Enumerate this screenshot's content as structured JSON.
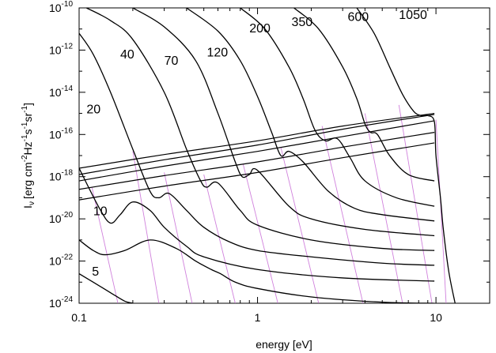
{
  "chart_data": {
    "type": "line",
    "title": "",
    "xlabel": "energy [eV]",
    "ylabel": "I",
    "ylabel_subscript": "ν",
    "ylabel_units": "[erg cm",
    "ylabel_unit_parts": [
      "[erg cm",
      "-2",
      "Hz",
      "-1",
      "s",
      "-1",
      "sr",
      "-1",
      "]"
    ],
    "x_scale": "log",
    "y_scale": "log",
    "xlim": [
      0.1,
      20
    ],
    "ylim": [
      1e-24,
      1e-10
    ],
    "grid": false,
    "legend": "none",
    "x_ticks": [
      {
        "value": 0.1,
        "label": "0.1"
      },
      {
        "value": 1,
        "label": "1"
      },
      {
        "value": 10,
        "label": "10"
      }
    ],
    "y_ticks": [
      {
        "value": -10,
        "base": "10",
        "exp": "-10"
      },
      {
        "value": -12,
        "base": "10",
        "exp": "-12"
      },
      {
        "value": -14,
        "base": "10",
        "exp": "-14"
      },
      {
        "value": -16,
        "base": "10",
        "exp": "-16"
      },
      {
        "value": -18,
        "base": "10",
        "exp": "-18"
      },
      {
        "value": -20,
        "base": "10",
        "exp": "-20"
      },
      {
        "value": -22,
        "base": "10",
        "exp": "-22"
      },
      {
        "value": -24,
        "base": "10",
        "exp": "-24"
      }
    ],
    "curve_labels": [
      {
        "text": "5",
        "x": 0.118,
        "y": 2e-23
      },
      {
        "text": "10",
        "x": 0.12,
        "y": 1.5e-20
      },
      {
        "text": "20",
        "x": 0.11,
        "y": 1e-15
      },
      {
        "text": "40",
        "x": 0.17,
        "y": 4e-13
      },
      {
        "text": "70",
        "x": 0.3,
        "y": 2e-13
      },
      {
        "text": "120",
        "x": 0.52,
        "y": 5e-13
      },
      {
        "text": "200",
        "x": 0.9,
        "y": 7e-12
      },
      {
        "text": "350",
        "x": 1.55,
        "y": 1.4e-11
      },
      {
        "text": "600",
        "x": 3.2,
        "y": 2.4e-11
      },
      {
        "text": "1050",
        "x": 6.2,
        "y": 3e-11
      }
    ],
    "series": [
      {
        "name": "5",
        "x": [
          0.1,
          0.12,
          0.15,
          0.18,
          0.2
        ],
        "y": [
          -22.6,
          -23.0,
          -23.5,
          -23.9,
          -24.0
        ]
      },
      {
        "name": "10",
        "x": [
          0.1,
          0.12,
          0.14,
          0.18,
          0.25,
          0.35,
          0.45,
          0.55,
          0.62,
          0.75,
          1.0,
          2.0,
          5.0,
          9.8
        ],
        "y": [
          -21.0,
          -21.5,
          -21.7,
          -21.5,
          -21.0,
          -21.4,
          -22.0,
          -22.4,
          -22.6,
          -23.0,
          -23.3,
          -23.7,
          -23.95,
          -24.0
        ]
      },
      {
        "name": "20",
        "x": [
          0.1,
          0.13,
          0.15,
          0.17,
          0.2,
          0.25,
          0.3,
          0.4,
          0.5,
          1.0,
          3.0,
          9.8
        ],
        "y": [
          -17.6,
          -19.5,
          -20.2,
          -19.8,
          -19.2,
          -19.6,
          -20.4,
          -21.3,
          -21.8,
          -22.4,
          -22.8,
          -22.95
        ]
      },
      {
        "name": "40",
        "x": [
          0.1,
          0.12,
          0.15,
          0.2,
          0.25,
          0.28,
          0.32,
          0.4,
          0.5,
          0.7,
          1.0,
          2.0,
          5.0,
          9.8
        ],
        "y": [
          -11.2,
          -12.2,
          -14.0,
          -16.7,
          -18.7,
          -19.0,
          -18.8,
          -19.6,
          -20.4,
          -21.1,
          -21.5,
          -21.8,
          -22.1,
          -22.2
        ]
      },
      {
        "name": "70",
        "x": [
          0.11,
          0.15,
          0.2,
          0.3,
          0.4,
          0.48,
          0.52,
          0.6,
          0.8,
          1.0,
          2.0,
          5.0,
          9.8
        ],
        "y": [
          -10.0,
          -10.6,
          -11.5,
          -14.0,
          -16.7,
          -18.2,
          -18.5,
          -18.3,
          -19.6,
          -20.3,
          -21.0,
          -21.4,
          -21.5
        ]
      },
      {
        "name": "120",
        "x": [
          0.2,
          0.3,
          0.45,
          0.6,
          0.75,
          0.82,
          0.9,
          1.0,
          1.5,
          2.0,
          4.0,
          9.8
        ],
        "y": [
          -10.0,
          -10.9,
          -12.5,
          -15.0,
          -17.3,
          -18.0,
          -17.9,
          -17.7,
          -19.4,
          -20.0,
          -20.5,
          -20.8
        ]
      },
      {
        "name": "200",
        "x": [
          0.4,
          0.6,
          0.8,
          1.0,
          1.2,
          1.35,
          1.5,
          1.8,
          2.5,
          3.5,
          5.0,
          9.8
        ],
        "y": [
          -10.0,
          -11.1,
          -12.5,
          -14.2,
          -15.9,
          -17.0,
          -16.8,
          -17.3,
          -18.7,
          -19.5,
          -19.8,
          -20.1
        ]
      },
      {
        "name": "350",
        "x": [
          0.8,
          1.1,
          1.5,
          1.8,
          2.1,
          2.4,
          2.8,
          3.3,
          4.0,
          6.0,
          9.8
        ],
        "y": [
          -10.0,
          -11.0,
          -12.8,
          -14.3,
          -15.8,
          -16.3,
          -16.2,
          -17.1,
          -18.2,
          -19.0,
          -19.4
        ]
      },
      {
        "name": "600",
        "x": [
          1.6,
          2.2,
          3.0,
          3.6,
          4.0,
          4.3,
          4.7,
          5.5,
          7.0,
          9.8
        ],
        "y": [
          -10.0,
          -11.0,
          -12.8,
          -14.3,
          -15.5,
          -15.9,
          -16.0,
          -17.0,
          -17.9,
          -18.2
        ]
      },
      {
        "name": "1050",
        "x": [
          3.6,
          4.5,
          5.5,
          6.5,
          7.5,
          8.2,
          9.0,
          9.8,
          10.0,
          10.6,
          11.0,
          11.8,
          12.8
        ],
        "y": [
          -10.0,
          -11.2,
          -12.8,
          -14.1,
          -14.9,
          -15.1,
          -15.1,
          -15.4,
          -17.0,
          -19.0,
          -20.5,
          -22.5,
          -24.0
        ]
      }
    ],
    "background_series": [
      {
        "x": [
          0.1,
          0.3,
          1.0,
          3.0,
          9.8
        ],
        "y": [
          -17.6,
          -16.95,
          -16.3,
          -15.6,
          -15.0
        ]
      },
      {
        "x": [
          0.1,
          0.3,
          1.0,
          3.0,
          9.8
        ],
        "y": [
          -17.9,
          -17.2,
          -16.5,
          -15.75,
          -15.05
        ]
      },
      {
        "x": [
          0.1,
          0.3,
          1.0,
          3.0,
          9.8
        ],
        "y": [
          -18.2,
          -17.5,
          -16.8,
          -16.1,
          -15.35
        ]
      },
      {
        "x": [
          0.1,
          0.3,
          1.0,
          3.0,
          9.8
        ],
        "y": [
          -18.6,
          -17.95,
          -17.3,
          -16.6,
          -15.9
        ]
      },
      {
        "x": [
          0.1,
          0.3,
          1.0,
          3.0,
          9.8
        ],
        "y": [
          -19.1,
          -18.45,
          -17.8,
          -17.1,
          -16.4
        ]
      }
    ],
    "guide_lines": [
      {
        "x": [
          0.118,
          0.165
        ],
        "y": [
          -18.5,
          -24.0
        ]
      },
      {
        "x": [
          0.2,
          0.28
        ],
        "y": [
          -16.8,
          -24.0
        ]
      },
      {
        "x": [
          0.3,
          0.43
        ],
        "y": [
          -17.8,
          -24.0
        ]
      },
      {
        "x": [
          0.5,
          0.75
        ],
        "y": [
          -17.9,
          -24.0
        ]
      },
      {
        "x": [
          0.83,
          1.3
        ],
        "y": [
          -17.4,
          -24.0
        ]
      },
      {
        "x": [
          1.35,
          2.2
        ],
        "y": [
          -16.6,
          -24.0
        ]
      },
      {
        "x": [
          2.3,
          3.9
        ],
        "y": [
          -15.6,
          -24.0
        ]
      },
      {
        "x": [
          4.0,
          6.5
        ],
        "y": [
          -15.0,
          -24.0
        ]
      },
      {
        "x": [
          6.2,
          9.5
        ],
        "y": [
          -14.6,
          -24.0
        ]
      },
      {
        "x": [
          10.0,
          11.4
        ],
        "y": [
          -15.3,
          -24.0
        ]
      }
    ]
  }
}
